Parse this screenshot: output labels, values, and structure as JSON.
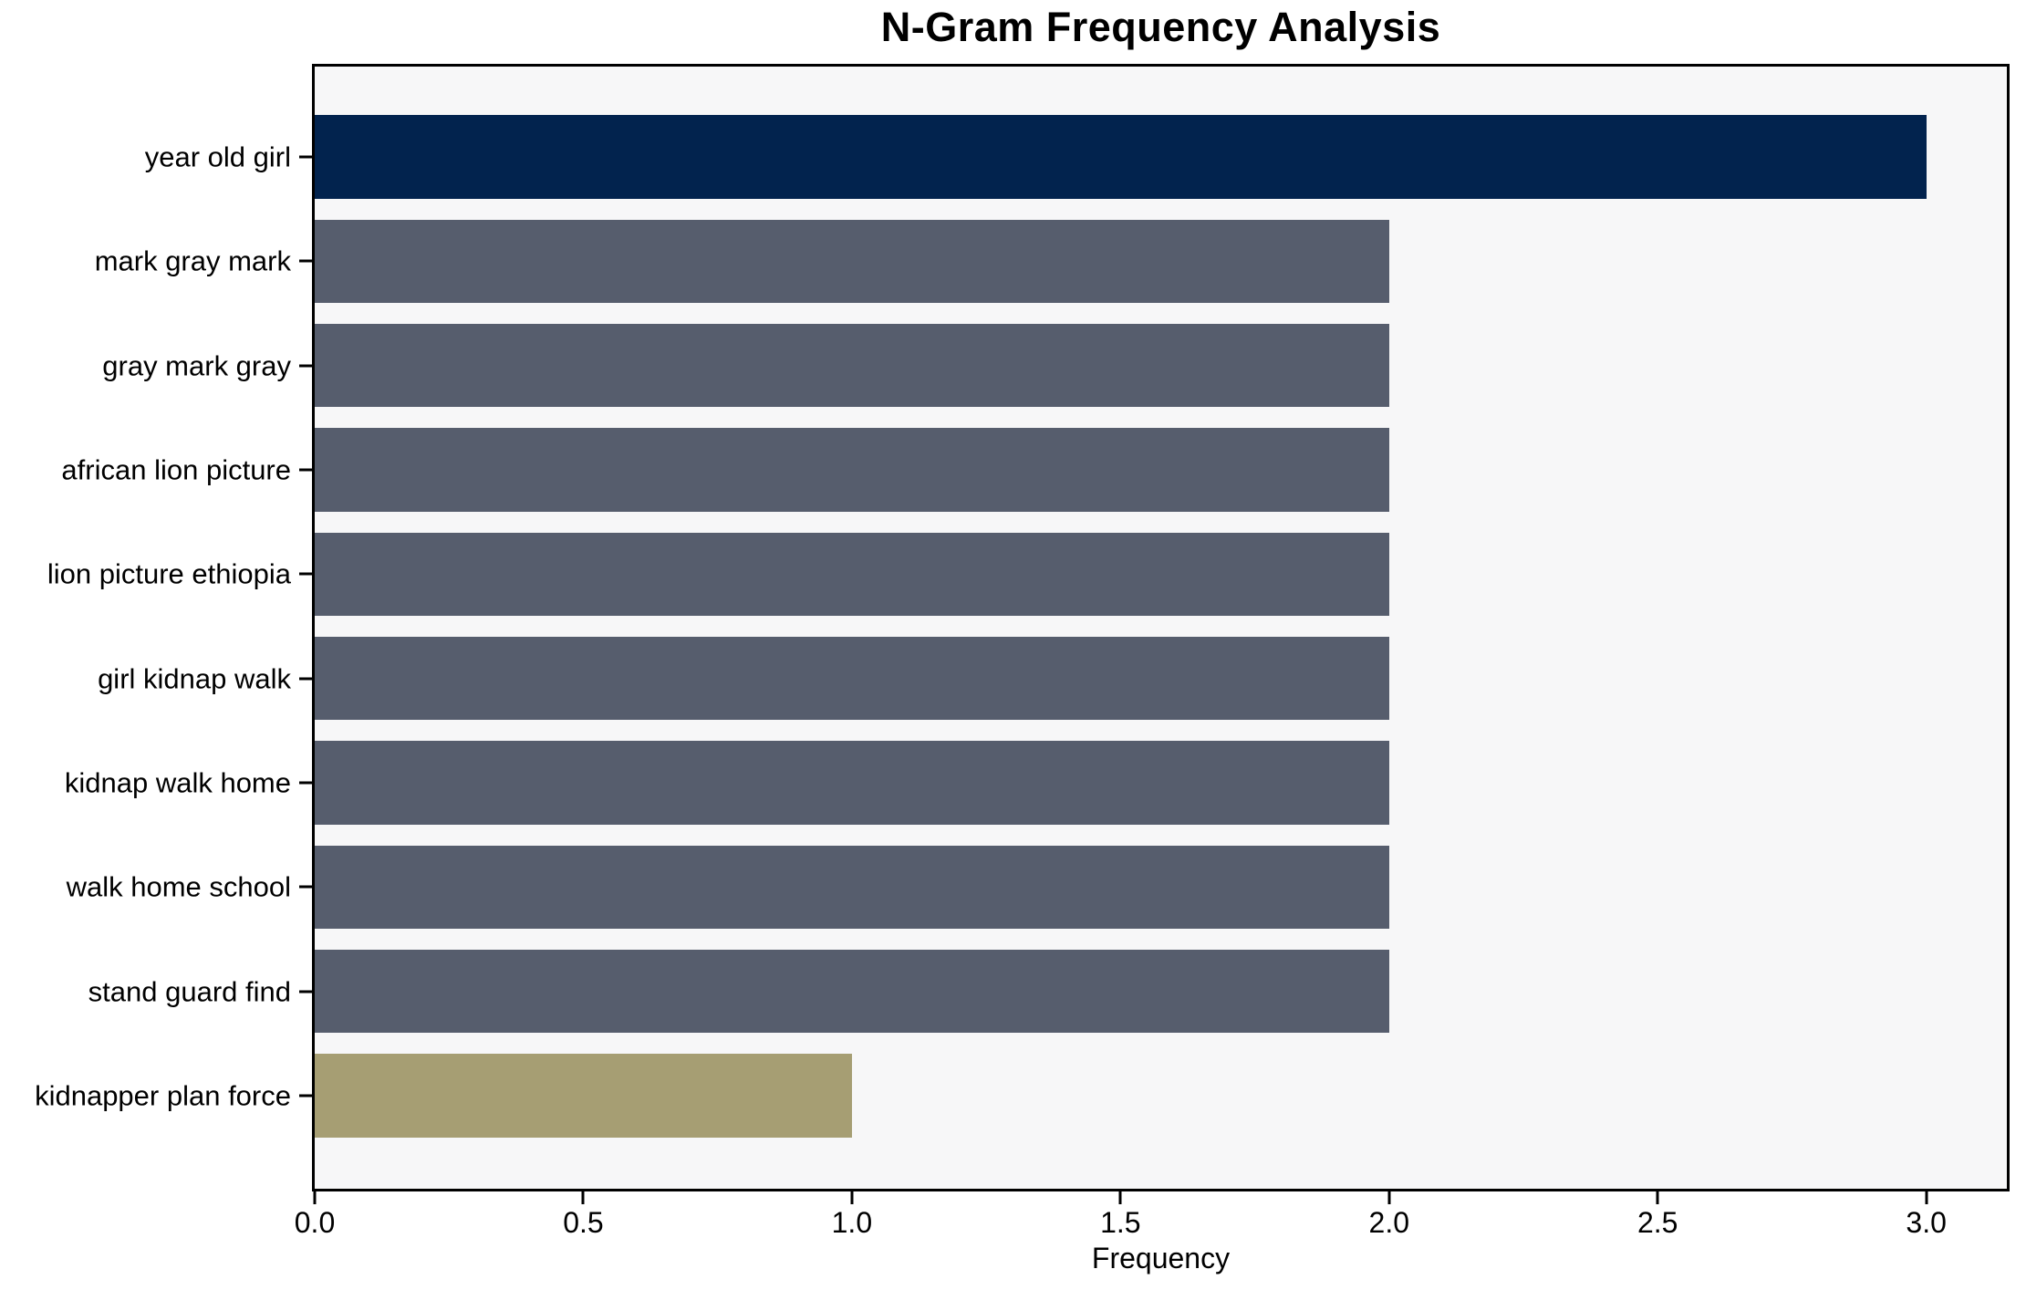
{
  "chart_data": {
    "type": "bar",
    "orientation": "horizontal",
    "title": "N-Gram Frequency Analysis",
    "xlabel": "Frequency",
    "ylabel": "",
    "categories": [
      "year old girl",
      "mark gray mark",
      "gray mark gray",
      "african lion picture",
      "lion picture ethiopia",
      "girl kidnap walk",
      "kidnap walk home",
      "walk home school",
      "stand guard find",
      "kidnapper plan force"
    ],
    "values": [
      3,
      2,
      2,
      2,
      2,
      2,
      2,
      2,
      2,
      1
    ],
    "bar_colors": [
      "#02234E",
      "#565D6D",
      "#565D6D",
      "#565D6D",
      "#565D6D",
      "#565D6D",
      "#565D6D",
      "#565D6D",
      "#565D6D",
      "#A69E73"
    ],
    "xlim": [
      0,
      3.15
    ],
    "xtick_values": [
      0.0,
      0.5,
      1.0,
      1.5,
      2.0,
      2.5,
      3.0
    ],
    "xtick_labels": [
      "0.0",
      "0.5",
      "1.0",
      "1.5",
      "2.0",
      "2.5",
      "3.0"
    ],
    "grid": false,
    "legend": "none",
    "bar_fraction": 0.8,
    "colors": {
      "plot_background": "#F7F7F8",
      "figure_background": "#FFFFFF",
      "axis": "#000000",
      "text": "#000000"
    }
  }
}
